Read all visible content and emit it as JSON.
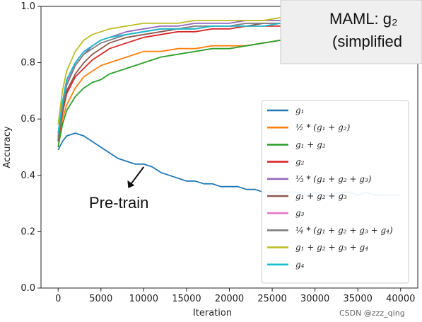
{
  "chart_data": {
    "type": "line",
    "xlabel": "Iteration",
    "ylabel": "Accuracy",
    "xlim": [
      -2000,
      42000
    ],
    "ylim": [
      0.0,
      1.0
    ],
    "xticks": [
      0,
      5000,
      10000,
      15000,
      20000,
      25000,
      30000,
      35000,
      40000
    ],
    "xtick_labels": [
      "0",
      "5000",
      "10000",
      "15000",
      "20000",
      "25000",
      "30000",
      "35000",
      "40000"
    ],
    "yticks": [
      0.0,
      0.2,
      0.4,
      0.6,
      0.8,
      1.0
    ],
    "ytick_labels": [
      "0.0",
      "0.2",
      "0.4",
      "0.6",
      "0.8",
      "1.0"
    ],
    "grid": false,
    "legend_position": "right",
    "series": [
      {
        "name": "g₁",
        "legend": "g₁",
        "color": "#1f77b4",
        "x": [
          0,
          500,
          1000,
          2000,
          3000,
          4000,
          5000,
          6000,
          7000,
          8000,
          9000,
          10000,
          11000,
          12000,
          13000,
          14000,
          15000,
          16000,
          17000,
          18000,
          19000,
          20000,
          21000,
          22000,
          23000,
          24000,
          25000,
          26000,
          27000,
          28000,
          29000,
          30000,
          31000,
          32000,
          33000,
          34000,
          35000,
          36000,
          37000,
          38000,
          39000,
          40000
        ],
        "y": [
          0.49,
          0.52,
          0.54,
          0.55,
          0.54,
          0.52,
          0.5,
          0.48,
          0.46,
          0.45,
          0.44,
          0.44,
          0.43,
          0.41,
          0.4,
          0.39,
          0.38,
          0.38,
          0.37,
          0.37,
          0.36,
          0.36,
          0.36,
          0.35,
          0.35,
          0.34,
          0.34,
          0.34,
          0.34,
          0.34,
          0.33,
          0.34,
          0.33,
          0.33,
          0.34,
          0.34,
          0.33,
          0.34,
          0.33,
          0.33,
          0.33,
          0.33
        ]
      },
      {
        "name": "½ * (g₁ + g₂)",
        "legend": "½ * (g₁ + g₂)",
        "color": "#ff7f0e",
        "x": [
          0,
          500,
          1000,
          2000,
          3000,
          4000,
          5000,
          6000,
          8000,
          10000,
          12000,
          14000,
          16000,
          18000,
          20000,
          22000,
          24000,
          26000
        ],
        "y": [
          0.5,
          0.6,
          0.65,
          0.71,
          0.75,
          0.77,
          0.79,
          0.8,
          0.82,
          0.84,
          0.84,
          0.85,
          0.85,
          0.86,
          0.86,
          0.86,
          0.87,
          0.88
        ]
      },
      {
        "name": "g₁ + g₂",
        "legend": "g₁ + g₂",
        "color": "#2ca02c",
        "x": [
          0,
          500,
          1000,
          2000,
          3000,
          4000,
          5000,
          6000,
          8000,
          10000,
          12000,
          14000,
          16000,
          18000,
          20000,
          22000,
          24000,
          26000
        ],
        "y": [
          0.5,
          0.58,
          0.63,
          0.68,
          0.71,
          0.73,
          0.74,
          0.76,
          0.78,
          0.8,
          0.82,
          0.83,
          0.84,
          0.85,
          0.85,
          0.86,
          0.87,
          0.88
        ]
      },
      {
        "name": "g₂",
        "legend": "g₂",
        "color": "#d62728",
        "x": [
          0,
          500,
          1000,
          2000,
          3000,
          4000,
          5000,
          6000,
          8000,
          10000,
          12000,
          14000,
          16000,
          18000,
          20000,
          22000,
          24000,
          26000
        ],
        "y": [
          0.52,
          0.62,
          0.69,
          0.75,
          0.78,
          0.81,
          0.83,
          0.85,
          0.87,
          0.89,
          0.9,
          0.91,
          0.91,
          0.92,
          0.92,
          0.93,
          0.93,
          0.93
        ]
      },
      {
        "name": "⅓ * (g₁ + g₂ + g₃)",
        "legend": "⅓ * (g₁ + g₂ + g₃)",
        "color": "#9467bd",
        "x": [
          0,
          500,
          1000,
          2000,
          3000,
          4000,
          5000,
          6000,
          8000,
          10000,
          12000,
          14000,
          16000,
          18000,
          20000,
          22000,
          24000,
          26000
        ],
        "y": [
          0.53,
          0.65,
          0.72,
          0.79,
          0.83,
          0.86,
          0.88,
          0.89,
          0.91,
          0.92,
          0.93,
          0.93,
          0.94,
          0.94,
          0.94,
          0.95,
          0.95,
          0.95
        ]
      },
      {
        "name": "g₁ + g₂ + g₃",
        "legend": "g₁ + g₂ + g₃",
        "color": "#8c564b",
        "x": [
          0,
          500,
          1000,
          2000,
          3000,
          4000,
          5000,
          6000,
          8000,
          10000,
          12000,
          14000,
          16000,
          18000,
          20000,
          22000,
          24000,
          26000
        ],
        "y": [
          0.52,
          0.63,
          0.7,
          0.76,
          0.8,
          0.83,
          0.85,
          0.87,
          0.89,
          0.9,
          0.91,
          0.92,
          0.92,
          0.93,
          0.93,
          0.93,
          0.94,
          0.94
        ]
      },
      {
        "name": "g₃",
        "legend": "g₃",
        "color": "#e377c2",
        "x": [
          0,
          500,
          1000,
          2000,
          3000,
          4000,
          5000,
          6000,
          8000,
          10000,
          12000,
          14000,
          16000,
          18000,
          20000,
          22000,
          24000,
          26000
        ],
        "y": [
          0.54,
          0.66,
          0.73,
          0.8,
          0.84,
          0.86,
          0.88,
          0.89,
          0.9,
          0.91,
          0.92,
          0.92,
          0.93,
          0.93,
          0.93,
          0.94,
          0.94,
          0.94
        ]
      },
      {
        "name": "¼ * (g₁ + g₂ + g₃ + g₄)",
        "legend": "¼ * (g₁ + g₂ + g₃ + g₄)",
        "color": "#7f7f7f",
        "x": [
          0,
          500,
          1000,
          2000,
          3000,
          4000,
          5000,
          6000,
          8000,
          10000,
          12000,
          14000,
          16000,
          18000,
          20000,
          22000,
          24000,
          26000
        ],
        "y": [
          0.53,
          0.64,
          0.72,
          0.79,
          0.83,
          0.85,
          0.87,
          0.88,
          0.9,
          0.91,
          0.92,
          0.92,
          0.93,
          0.93,
          0.93,
          0.94,
          0.94,
          0.94
        ]
      },
      {
        "name": "g₁ + g₂ + g₃ + g₄",
        "legend": "g₁ + g₂ + g₃ + g₄",
        "color": "#bcbd22",
        "x": [
          0,
          500,
          1000,
          2000,
          3000,
          4000,
          5000,
          6000,
          8000,
          10000,
          12000,
          14000,
          16000,
          18000,
          20000,
          22000,
          24000,
          26000
        ],
        "y": [
          0.58,
          0.7,
          0.77,
          0.84,
          0.88,
          0.9,
          0.91,
          0.92,
          0.93,
          0.94,
          0.94,
          0.94,
          0.95,
          0.95,
          0.95,
          0.95,
          0.95,
          0.96
        ]
      },
      {
        "name": "g₄",
        "legend": "g₄",
        "color": "#17becf",
        "x": [
          0,
          500,
          1000,
          2000,
          3000,
          4000,
          5000,
          6000,
          8000,
          10000,
          12000,
          14000,
          16000,
          18000,
          20000,
          22000,
          24000,
          26000
        ],
        "y": [
          0.55,
          0.66,
          0.74,
          0.8,
          0.84,
          0.86,
          0.88,
          0.89,
          0.9,
          0.91,
          0.92,
          0.92,
          0.92,
          0.93,
          0.93,
          0.93,
          0.93,
          0.94
        ]
      }
    ],
    "annotations": [
      {
        "text": "Pre-train",
        "points_to": {
          "x": 10000,
          "y": 0.43
        }
      }
    ]
  },
  "callout": {
    "line1": "MAML: g₂",
    "line2": "(simplified"
  },
  "watermark": "CSDN @zzz_qing"
}
